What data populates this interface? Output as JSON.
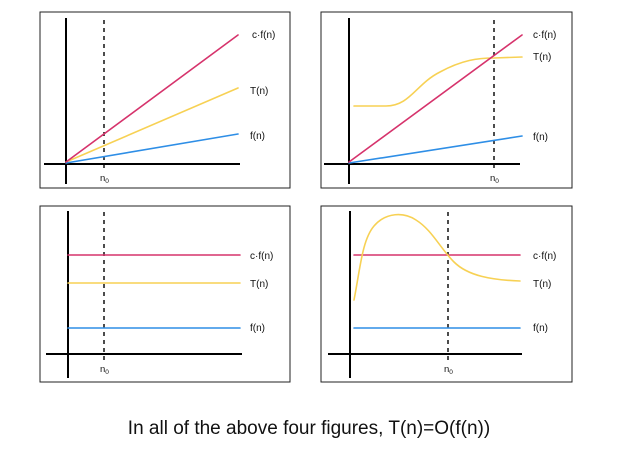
{
  "colors": {
    "cf": "#d6336c",
    "t": "#f7d154",
    "f": "#2e8ee6"
  },
  "panels": [
    {
      "labels": {
        "cf": "c·f(n)",
        "t": "T(n)",
        "f": "f(n)"
      },
      "n0": "n",
      "n0_sub": "0"
    },
    {
      "labels": {
        "cf": "c·f(n)",
        "t": "T(n)",
        "f": "f(n)"
      },
      "n0": "n",
      "n0_sub": "0"
    },
    {
      "labels": {
        "cf": "c·f(n)",
        "t": "T(n)",
        "f": "f(n)"
      },
      "n0": "n",
      "n0_sub": "0"
    },
    {
      "labels": {
        "cf": "c·f(n)",
        "t": "T(n)",
        "f": "f(n)"
      },
      "n0": "n",
      "n0_sub": "0"
    }
  ],
  "caption": "In all of the above four figures, T(n)=O(f(n))"
}
